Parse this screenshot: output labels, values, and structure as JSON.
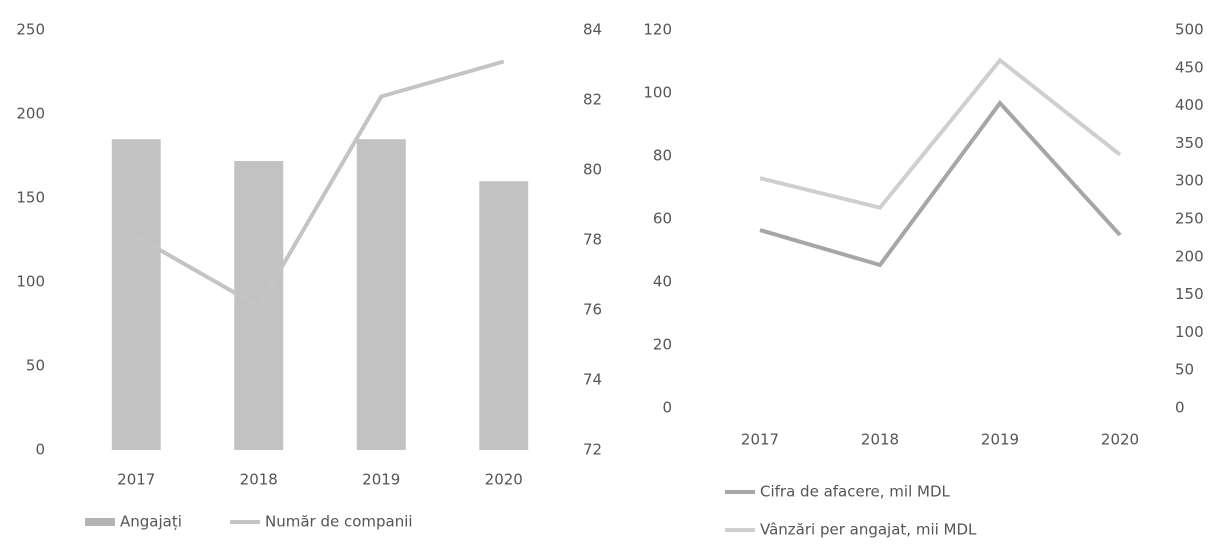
{
  "chart_data": [
    {
      "type": "bar",
      "categories": [
        "2017",
        "2018",
        "2019",
        "2020"
      ],
      "series": [
        {
          "name": "Angajați",
          "color": "#b3b3b3",
          "values": [
            185,
            172,
            185,
            160
          ]
        },
        {
          "name": "Număr de companii",
          "type": "line",
          "axis": "y2",
          "color": "#c4c4c4",
          "values": [
            78.1,
            76.1,
            82.1,
            83.1
          ]
        }
      ],
      "ylim": [
        0,
        250
      ],
      "yticks": [
        0,
        50,
        100,
        150,
        200,
        250
      ],
      "y2lim": [
        72,
        84
      ],
      "y2ticks": [
        72,
        74,
        76,
        78,
        80,
        82,
        84
      ],
      "legend": "bottom"
    },
    {
      "type": "line",
      "categories": [
        "2017",
        "2018",
        "2019",
        "2020"
      ],
      "series": [
        {
          "name": "Cifra de afacere, mil MDL",
          "color": "#a6a6a6",
          "values": [
            56.5,
            45.4,
            96.8,
            54.9
          ]
        },
        {
          "name": "Vânzări per angajat, mii MDL",
          "axis": "y2",
          "color": "#cfcfcf",
          "values": [
            304,
            265,
            460,
            335
          ]
        }
      ],
      "ylim": [
        0,
        120
      ],
      "yticks": [
        0,
        20,
        40,
        60,
        80,
        100,
        120
      ],
      "y2lim": [
        0,
        500
      ],
      "y2ticks": [
        0,
        50,
        100,
        150,
        200,
        250,
        300,
        350,
        400,
        450,
        500
      ],
      "legend": "bottom"
    }
  ]
}
